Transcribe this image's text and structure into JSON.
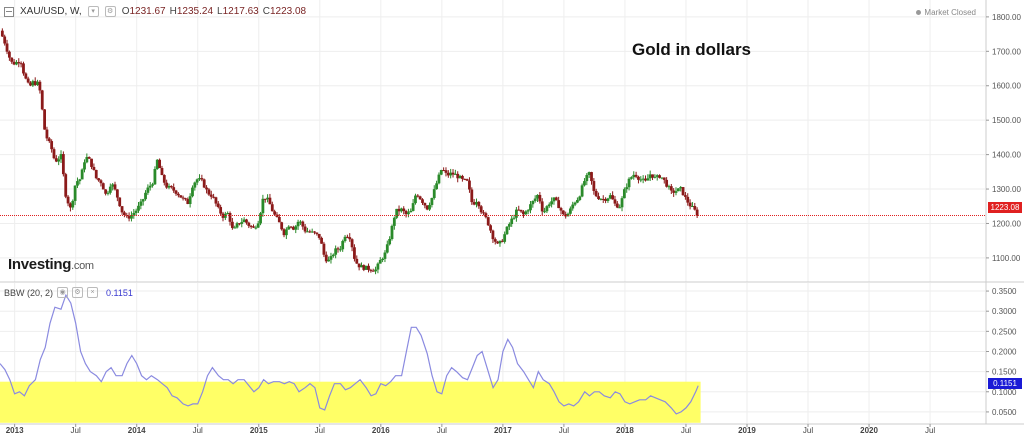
{
  "header": {
    "symbol": "XAU/USD, W,",
    "ohlc": [
      {
        "k": "O",
        "v": "1231.67"
      },
      {
        "k": "H",
        "v": "1235.24"
      },
      {
        "k": "L",
        "v": "1217.63"
      },
      {
        "k": "C",
        "v": "1223.08"
      }
    ],
    "status": "Market Closed",
    "annotation": "Gold in dollars"
  },
  "logo": {
    "main": "Investing",
    "suffix": ".com"
  },
  "indicator": {
    "label": "BBW (20, 2)",
    "value": "0.1151"
  },
  "colors": {
    "up": "#2a8a2a",
    "down": "#8b1a1a",
    "bbw_line": "#8a8ae0",
    "highlight": "#ffff66",
    "price_line": "#e02020",
    "bbw_badge": "#1a1ad6",
    "grid": "#eeeeee"
  },
  "chart_data": [
    {
      "type": "candlestick",
      "title": "Gold in dollars",
      "series_name": "XAU/USD, W,",
      "y_ticks": [
        "1800.00",
        "1700.00",
        "1600.00",
        "1500.00",
        "1400.00",
        "1300.00",
        "1200.00",
        "1100.00"
      ],
      "ylim": [
        1030,
        1820
      ],
      "x_ticks": [
        "2013",
        "Jul",
        "2014",
        "Jul",
        "2015",
        "Jul",
        "2016",
        "Jul",
        "2017",
        "Jul",
        "2018",
        "Jul",
        "2019",
        "Jul",
        "2020",
        "Jul"
      ],
      "x_tick_dates": [
        2013.0,
        2013.5,
        2014.0,
        2014.5,
        2015.0,
        2015.5,
        2016.0,
        2016.5,
        2017.0,
        2017.5,
        2018.0,
        2018.5,
        2019.0,
        2019.5,
        2020.0,
        2020.5
      ],
      "xlim": [
        2012.88,
        2020.95
      ],
      "last_price": 1223.08,
      "last_price_label": "1223.08",
      "price_path": [
        [
          2012.88,
          1760
        ],
        [
          2012.92,
          1725
        ],
        [
          2012.97,
          1668
        ],
        [
          2013.0,
          1665
        ],
        [
          2013.05,
          1675
        ],
        [
          2013.08,
          1628
        ],
        [
          2013.12,
          1595
        ],
        [
          2013.15,
          1610
        ],
        [
          2013.2,
          1605
        ],
        [
          2013.25,
          1460
        ],
        [
          2013.3,
          1420
        ],
        [
          2013.33,
          1380
        ],
        [
          2013.38,
          1395
        ],
        [
          2013.42,
          1280
        ],
        [
          2013.46,
          1240
        ],
        [
          2013.5,
          1320
        ],
        [
          2013.54,
          1330
        ],
        [
          2013.58,
          1395
        ],
        [
          2013.62,
          1380
        ],
        [
          2013.67,
          1330
        ],
        [
          2013.71,
          1320
        ],
        [
          2013.75,
          1280
        ],
        [
          2013.79,
          1320
        ],
        [
          2013.83,
          1290
        ],
        [
          2013.88,
          1235
        ],
        [
          2013.92,
          1215
        ],
        [
          2013.96,
          1225
        ],
        [
          2014.0,
          1240
        ],
        [
          2014.04,
          1260
        ],
        [
          2014.08,
          1295
        ],
        [
          2014.13,
          1320
        ],
        [
          2014.17,
          1385
        ],
        [
          2014.21,
          1330
        ],
        [
          2014.25,
          1305
        ],
        [
          2014.29,
          1300
        ],
        [
          2014.33,
          1290
        ],
        [
          2014.38,
          1270
        ],
        [
          2014.42,
          1260
        ],
        [
          2014.46,
          1315
        ],
        [
          2014.5,
          1330
        ],
        [
          2014.54,
          1320
        ],
        [
          2014.58,
          1290
        ],
        [
          2014.62,
          1280
        ],
        [
          2014.67,
          1240
        ],
        [
          2014.71,
          1220
        ],
        [
          2014.75,
          1230
        ],
        [
          2014.79,
          1175
        ],
        [
          2014.83,
          1200
        ],
        [
          2014.88,
          1210
        ],
        [
          2014.92,
          1195
        ],
        [
          2014.96,
          1185
        ],
        [
          2015.0,
          1210
        ],
        [
          2015.04,
          1280
        ],
        [
          2015.08,
          1265
        ],
        [
          2015.12,
          1230
        ],
        [
          2015.17,
          1200
        ],
        [
          2015.21,
          1170
        ],
        [
          2015.25,
          1200
        ],
        [
          2015.29,
          1185
        ],
        [
          2015.33,
          1210
        ],
        [
          2015.38,
          1180
        ],
        [
          2015.42,
          1175
        ],
        [
          2015.46,
          1170
        ],
        [
          2015.5,
          1160
        ],
        [
          2015.54,
          1100
        ],
        [
          2015.58,
          1090
        ],
        [
          2015.62,
          1120
        ],
        [
          2015.67,
          1130
        ],
        [
          2015.71,
          1170
        ],
        [
          2015.75,
          1160
        ],
        [
          2015.79,
          1090
        ],
        [
          2015.83,
          1075
        ],
        [
          2015.88,
          1070
        ],
        [
          2015.92,
          1068
        ],
        [
          2015.96,
          1065
        ],
        [
          2016.0,
          1095
        ],
        [
          2016.04,
          1115
        ],
        [
          2016.08,
          1170
        ],
        [
          2016.12,
          1235
        ],
        [
          2016.17,
          1240
        ],
        [
          2016.21,
          1225
        ],
        [
          2016.25,
          1235
        ],
        [
          2016.29,
          1290
        ],
        [
          2016.33,
          1270
        ],
        [
          2016.38,
          1245
        ],
        [
          2016.42,
          1275
        ],
        [
          2016.46,
          1320
        ],
        [
          2016.5,
          1360
        ],
        [
          2016.54,
          1340
        ],
        [
          2016.58,
          1345
        ],
        [
          2016.62,
          1340
        ],
        [
          2016.67,
          1325
        ],
        [
          2016.71,
          1320
        ],
        [
          2016.75,
          1255
        ],
        [
          2016.79,
          1270
        ],
        [
          2016.83,
          1230
        ],
        [
          2016.87,
          1210
        ],
        [
          2016.92,
          1160
        ],
        [
          2016.96,
          1135
        ],
        [
          2017.0,
          1155
        ],
        [
          2017.04,
          1190
        ],
        [
          2017.08,
          1215
        ],
        [
          2017.12,
          1240
        ],
        [
          2017.17,
          1225
        ],
        [
          2017.21,
          1245
        ],
        [
          2017.25,
          1265
        ],
        [
          2017.29,
          1285
        ],
        [
          2017.33,
          1230
        ],
        [
          2017.38,
          1260
        ],
        [
          2017.42,
          1270
        ],
        [
          2017.46,
          1250
        ],
        [
          2017.5,
          1220
        ],
        [
          2017.54,
          1230
        ],
        [
          2017.58,
          1260
        ],
        [
          2017.62,
          1275
        ],
        [
          2017.67,
          1325
        ],
        [
          2017.71,
          1345
        ],
        [
          2017.75,
          1285
        ],
        [
          2017.79,
          1275
        ],
        [
          2017.83,
          1270
        ],
        [
          2017.88,
          1280
        ],
        [
          2017.92,
          1255
        ],
        [
          2017.96,
          1250
        ],
        [
          2018.0,
          1300
        ],
        [
          2018.04,
          1330
        ],
        [
          2018.08,
          1345
        ],
        [
          2018.12,
          1330
        ],
        [
          2018.17,
          1320
        ],
        [
          2018.21,
          1345
        ],
        [
          2018.25,
          1330
        ],
        [
          2018.29,
          1340
        ],
        [
          2018.33,
          1320
        ],
        [
          2018.38,
          1290
        ],
        [
          2018.42,
          1295
        ],
        [
          2018.46,
          1300
        ],
        [
          2018.5,
          1270
        ],
        [
          2018.54,
          1250
        ],
        [
          2018.57,
          1238
        ],
        [
          2018.6,
          1223.08
        ]
      ]
    },
    {
      "type": "line",
      "series_name": "BBW (20, 2)",
      "y_ticks": [
        "0.3500",
        "0.3000",
        "0.2500",
        "0.2000",
        "0.1500",
        "0.1000",
        "0.0500"
      ],
      "ylim": [
        0.02,
        0.37
      ],
      "highlight_band": [
        0.023,
        0.125
      ],
      "last_value": 0.1151,
      "last_value_label": "0.1151",
      "points": [
        [
          2012.88,
          0.17
        ],
        [
          2012.92,
          0.155
        ],
        [
          2012.96,
          0.13
        ],
        [
          2013.0,
          0.095
        ],
        [
          2013.04,
          0.1
        ],
        [
          2013.08,
          0.09
        ],
        [
          2013.12,
          0.115
        ],
        [
          2013.17,
          0.13
        ],
        [
          2013.21,
          0.18
        ],
        [
          2013.25,
          0.21
        ],
        [
          2013.29,
          0.27
        ],
        [
          2013.33,
          0.31
        ],
        [
          2013.38,
          0.305
        ],
        [
          2013.42,
          0.34
        ],
        [
          2013.46,
          0.32
        ],
        [
          2013.5,
          0.27
        ],
        [
          2013.54,
          0.2
        ],
        [
          2013.58,
          0.17
        ],
        [
          2013.62,
          0.15
        ],
        [
          2013.67,
          0.14
        ],
        [
          2013.71,
          0.125
        ],
        [
          2013.75,
          0.15
        ],
        [
          2013.79,
          0.16
        ],
        [
          2013.83,
          0.14
        ],
        [
          2013.88,
          0.14
        ],
        [
          2013.92,
          0.17
        ],
        [
          2013.96,
          0.19
        ],
        [
          2014.0,
          0.17
        ],
        [
          2014.04,
          0.14
        ],
        [
          2014.08,
          0.13
        ],
        [
          2014.12,
          0.14
        ],
        [
          2014.17,
          0.13
        ],
        [
          2014.21,
          0.12
        ],
        [
          2014.25,
          0.11
        ],
        [
          2014.29,
          0.09
        ],
        [
          2014.33,
          0.085
        ],
        [
          2014.38,
          0.07
        ],
        [
          2014.42,
          0.065
        ],
        [
          2014.46,
          0.07
        ],
        [
          2014.5,
          0.07
        ],
        [
          2014.54,
          0.1
        ],
        [
          2014.58,
          0.14
        ],
        [
          2014.62,
          0.16
        ],
        [
          2014.67,
          0.14
        ],
        [
          2014.71,
          0.13
        ],
        [
          2014.75,
          0.13
        ],
        [
          2014.79,
          0.12
        ],
        [
          2014.83,
          0.13
        ],
        [
          2014.88,
          0.13
        ],
        [
          2014.92,
          0.115
        ],
        [
          2014.96,
          0.1
        ],
        [
          2015.0,
          0.11
        ],
        [
          2015.04,
          0.13
        ],
        [
          2015.08,
          0.12
        ],
        [
          2015.12,
          0.125
        ],
        [
          2015.17,
          0.125
        ],
        [
          2015.21,
          0.12
        ],
        [
          2015.25,
          0.125
        ],
        [
          2015.29,
          0.12
        ],
        [
          2015.33,
          0.1
        ],
        [
          2015.38,
          0.11
        ],
        [
          2015.42,
          0.12
        ],
        [
          2015.46,
          0.11
        ],
        [
          2015.5,
          0.06
        ],
        [
          2015.54,
          0.055
        ],
        [
          2015.58,
          0.09
        ],
        [
          2015.62,
          0.12
        ],
        [
          2015.67,
          0.12
        ],
        [
          2015.71,
          0.105
        ],
        [
          2015.75,
          0.11
        ],
        [
          2015.79,
          0.12
        ],
        [
          2015.83,
          0.13
        ],
        [
          2015.88,
          0.11
        ],
        [
          2015.92,
          0.09
        ],
        [
          2015.96,
          0.095
        ],
        [
          2016.0,
          0.12
        ],
        [
          2016.04,
          0.115
        ],
        [
          2016.08,
          0.125
        ],
        [
          2016.12,
          0.14
        ],
        [
          2016.17,
          0.14
        ],
        [
          2016.21,
          0.2
        ],
        [
          2016.25,
          0.26
        ],
        [
          2016.29,
          0.26
        ],
        [
          2016.33,
          0.24
        ],
        [
          2016.38,
          0.195
        ],
        [
          2016.42,
          0.14
        ],
        [
          2016.46,
          0.1
        ],
        [
          2016.5,
          0.095
        ],
        [
          2016.54,
          0.14
        ],
        [
          2016.58,
          0.16
        ],
        [
          2016.62,
          0.15
        ],
        [
          2016.67,
          0.135
        ],
        [
          2016.71,
          0.13
        ],
        [
          2016.75,
          0.16
        ],
        [
          2016.79,
          0.19
        ],
        [
          2016.83,
          0.2
        ],
        [
          2016.87,
          0.16
        ],
        [
          2016.92,
          0.11
        ],
        [
          2016.96,
          0.13
        ],
        [
          2017.0,
          0.2
        ],
        [
          2017.04,
          0.23
        ],
        [
          2017.08,
          0.21
        ],
        [
          2017.12,
          0.17
        ],
        [
          2017.17,
          0.15
        ],
        [
          2017.21,
          0.13
        ],
        [
          2017.25,
          0.11
        ],
        [
          2017.29,
          0.15
        ],
        [
          2017.33,
          0.13
        ],
        [
          2017.38,
          0.12
        ],
        [
          2017.42,
          0.1
        ],
        [
          2017.46,
          0.075
        ],
        [
          2017.5,
          0.065
        ],
        [
          2017.54,
          0.07
        ],
        [
          2017.58,
          0.065
        ],
        [
          2017.62,
          0.075
        ],
        [
          2017.67,
          0.1
        ],
        [
          2017.71,
          0.09
        ],
        [
          2017.75,
          0.1
        ],
        [
          2017.79,
          0.1
        ],
        [
          2017.83,
          0.09
        ],
        [
          2017.88,
          0.085
        ],
        [
          2017.92,
          0.1
        ],
        [
          2017.96,
          0.095
        ],
        [
          2018.0,
          0.075
        ],
        [
          2018.04,
          0.07
        ],
        [
          2018.08,
          0.075
        ],
        [
          2018.12,
          0.08
        ],
        [
          2018.17,
          0.08
        ],
        [
          2018.21,
          0.09
        ],
        [
          2018.25,
          0.085
        ],
        [
          2018.29,
          0.08
        ],
        [
          2018.33,
          0.075
        ],
        [
          2018.38,
          0.06
        ],
        [
          2018.42,
          0.045
        ],
        [
          2018.46,
          0.05
        ],
        [
          2018.5,
          0.06
        ],
        [
          2018.54,
          0.075
        ],
        [
          2018.58,
          0.1
        ],
        [
          2018.6,
          0.1151
        ]
      ]
    }
  ]
}
